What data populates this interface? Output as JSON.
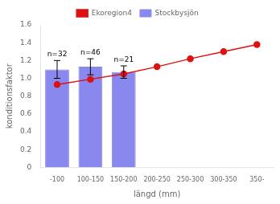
{
  "chart_data": {
    "type": "bar",
    "xlabel": "längd (mm)",
    "ylabel": "konditionsfaktor",
    "categories": [
      "-100",
      "100-150",
      "150-200",
      "200-250",
      "250-300",
      "300-350",
      "350-"
    ],
    "series": [
      {
        "name": "Stockbysjön",
        "type": "bar",
        "color": "#8888ee",
        "values": [
          1.1,
          1.13,
          1.07,
          null,
          null,
          null,
          null
        ],
        "errors": [
          0.1,
          0.09,
          0.07,
          null,
          null,
          null,
          null
        ],
        "labels": [
          "n=32",
          "n=46",
          "n=21",
          null,
          null,
          null,
          null
        ]
      },
      {
        "name": "Ekoregion4",
        "type": "line",
        "color": "#dd1111",
        "marker": "circle",
        "values": [
          0.93,
          0.99,
          1.05,
          1.13,
          1.22,
          1.3,
          1.38
        ]
      }
    ],
    "ylim": [
      0,
      1.6
    ],
    "yticks": [
      0,
      0.2,
      0.4,
      0.6,
      0.8,
      {
        "value": 1.0,
        "label": "1.0"
      },
      1.2,
      1.4,
      1.6
    ],
    "legend": "top",
    "grid": false
  }
}
